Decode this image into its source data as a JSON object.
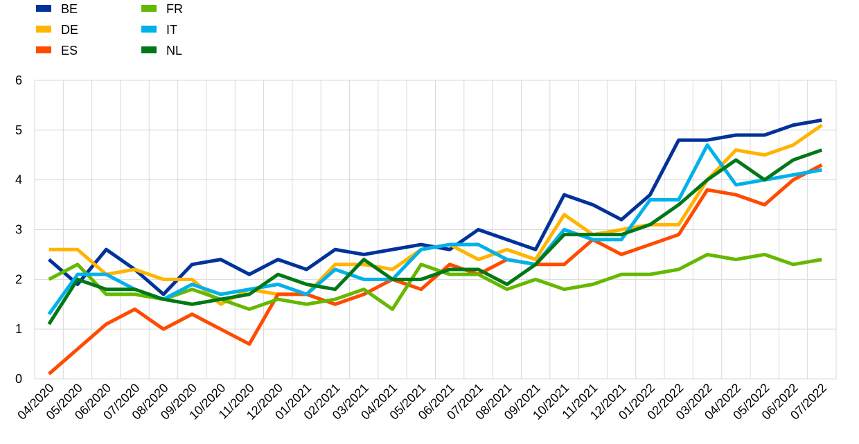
{
  "chart_data": {
    "type": "line",
    "categories": [
      "04/2020",
      "05/2020",
      "06/2020",
      "07/2020",
      "08/2020",
      "09/2020",
      "10/2020",
      "11/2020",
      "12/2020",
      "01/2021",
      "02/2021",
      "03/2021",
      "04/2021",
      "05/2021",
      "06/2021",
      "07/2021",
      "08/2021",
      "09/2021",
      "10/2021",
      "11/2021",
      "12/2021",
      "01/2022",
      "02/2022",
      "03/2022",
      "04/2022",
      "05/2022",
      "06/2022",
      "07/2022"
    ],
    "series": [
      {
        "name": "BE",
        "color": "#003299",
        "values": [
          2.4,
          1.9,
          2.6,
          2.2,
          1.7,
          2.3,
          2.4,
          2.1,
          2.4,
          2.2,
          2.6,
          2.5,
          2.6,
          2.7,
          2.6,
          3.0,
          2.8,
          2.6,
          3.7,
          3.5,
          3.2,
          3.7,
          4.8,
          4.8,
          4.9,
          4.9,
          5.1,
          5.2
        ]
      },
      {
        "name": "DE",
        "color": "#ffb400",
        "values": [
          2.6,
          2.6,
          2.1,
          2.2,
          2.0,
          2.0,
          1.5,
          1.8,
          1.7,
          1.7,
          2.3,
          2.3,
          2.2,
          2.6,
          2.7,
          2.4,
          2.6,
          2.4,
          3.3,
          2.9,
          3.0,
          3.1,
          3.1,
          4.0,
          4.6,
          4.5,
          4.7,
          5.1
        ]
      },
      {
        "name": "ES",
        "color": "#ff4b00",
        "values": [
          0.1,
          0.6,
          1.1,
          1.4,
          1.0,
          1.3,
          1.0,
          0.7,
          1.7,
          1.7,
          1.5,
          1.7,
          2.0,
          1.8,
          2.3,
          2.1,
          2.4,
          2.3,
          2.3,
          2.8,
          2.5,
          2.7,
          2.9,
          3.8,
          3.7,
          3.5,
          4.0,
          4.3
        ]
      },
      {
        "name": "FR",
        "color": "#65b800",
        "values": [
          2.0,
          2.3,
          1.7,
          1.7,
          1.6,
          1.8,
          1.6,
          1.4,
          1.6,
          1.5,
          1.6,
          1.8,
          1.4,
          2.3,
          2.1,
          2.1,
          1.8,
          2.0,
          1.8,
          1.9,
          2.1,
          2.1,
          2.2,
          2.5,
          2.4,
          2.5,
          2.3,
          2.4
        ]
      },
      {
        "name": "IT",
        "color": "#00b1ea",
        "values": [
          1.3,
          2.1,
          2.1,
          1.8,
          1.6,
          1.9,
          1.7,
          1.8,
          1.9,
          1.7,
          2.2,
          2.0,
          2.0,
          2.6,
          2.7,
          2.7,
          2.4,
          2.3,
          3.0,
          2.8,
          2.8,
          3.6,
          3.6,
          4.7,
          3.9,
          4.0,
          4.1,
          4.2
        ]
      },
      {
        "name": "NL",
        "color": "#007816",
        "values": [
          1.1,
          2.0,
          1.8,
          1.8,
          1.6,
          1.5,
          1.6,
          1.7,
          2.1,
          1.9,
          1.8,
          2.4,
          2.0,
          2.0,
          2.2,
          2.2,
          1.9,
          2.3,
          2.9,
          2.9,
          2.9,
          3.1,
          3.5,
          4.0,
          4.4,
          4.0,
          4.4,
          4.6
        ]
      }
    ],
    "ylim": [
      0,
      6
    ],
    "yticks": [
      0,
      1,
      2,
      3,
      4,
      5,
      6
    ],
    "grid": true,
    "legend": "top-left"
  }
}
